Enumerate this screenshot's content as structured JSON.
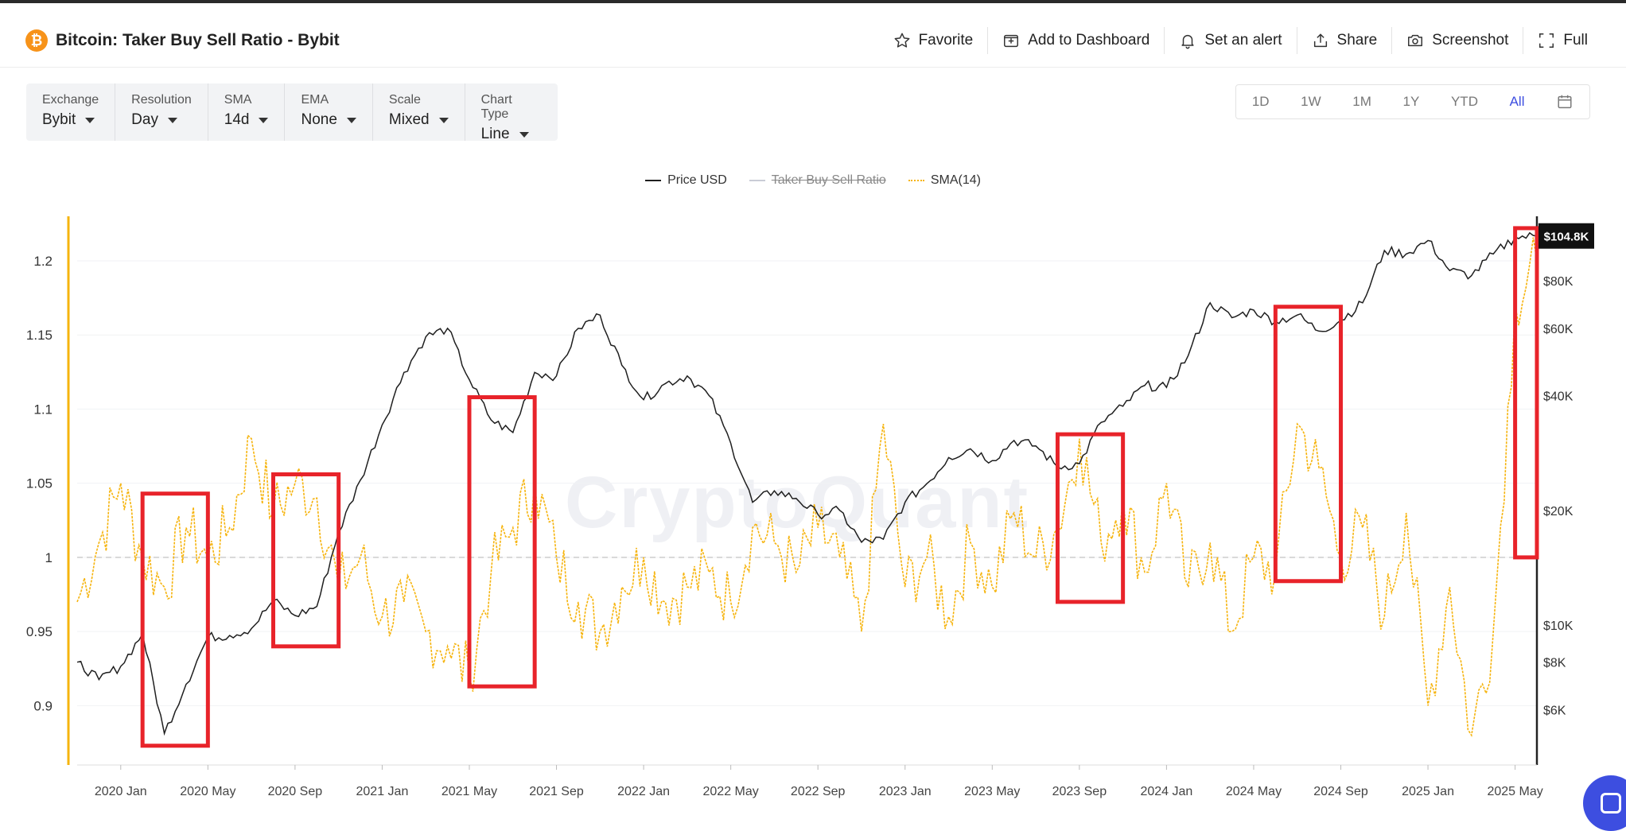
{
  "header": {
    "title": "Bitcoin: Taker Buy Sell Ratio - Bybit",
    "actions": [
      {
        "label": "Favorite",
        "icon": "star-icon"
      },
      {
        "label": "Add to Dashboard",
        "icon": "add-dashboard-icon"
      },
      {
        "label": "Set an alert",
        "icon": "bell-icon"
      },
      {
        "label": "Share",
        "icon": "share-icon"
      },
      {
        "label": "Screenshot",
        "icon": "camera-icon"
      },
      {
        "label": "Full",
        "icon": "fullscreen-icon"
      }
    ]
  },
  "controls": [
    {
      "label": "Exchange",
      "value": "Bybit"
    },
    {
      "label": "Resolution",
      "value": "Day"
    },
    {
      "label": "SMA",
      "value": "14d"
    },
    {
      "label": "EMA",
      "value": "None"
    },
    {
      "label": "Scale",
      "value": "Mixed"
    },
    {
      "label": "Chart Type",
      "value": "Line"
    }
  ],
  "ranges": [
    "1D",
    "1W",
    "1M",
    "1Y",
    "YTD",
    "All"
  ],
  "active_range": "All",
  "watermark": "CryptoQuant",
  "colors": {
    "price": "#1f1f1f",
    "sma": "#f6b40e",
    "ratio": "#c9ccd6",
    "highlight": "#e8232a",
    "accent": "#3d4ee0"
  },
  "chart_data": {
    "type": "line",
    "x_axis": {
      "tick_labels": [
        "2020 Jan",
        "2020 May",
        "2020 Sep",
        "2021 Jan",
        "2021 May",
        "2021 Sep",
        "2022 Jan",
        "2022 May",
        "2022 Sep",
        "2023 Jan",
        "2023 May",
        "2023 Sep",
        "2024 Jan",
        "2024 May",
        "2024 Sep",
        "2025 Jan",
        "2025 May"
      ],
      "range": [
        "2019-11",
        "2025-06"
      ]
    },
    "left_axis": {
      "ticks": [
        "0.9",
        "0.95",
        "1",
        "1.05",
        "1.1",
        "1.15",
        "1.2"
      ],
      "range": [
        0.86,
        1.23
      ],
      "reference_line": 1
    },
    "right_axis": {
      "scale": "log",
      "ticks": [
        "$6K",
        "$8K",
        "$10K",
        "$20K",
        "$40K",
        "$60K",
        "$80K"
      ],
      "range": [
        4300,
        118000
      ]
    },
    "legend": {
      "position": "top-center",
      "entries": [
        "Price USD",
        "Taker Buy Sell Ratio",
        "SMA(14)"
      ],
      "hidden": [
        "Taker Buy Sell Ratio"
      ]
    },
    "current_price_label": "$104.8K",
    "series": [
      {
        "name": "Price USD",
        "axis": "right",
        "color": "#1f1f1f",
        "points": [
          [
            "2019-11",
            8000
          ],
          [
            "2019-12",
            7200
          ],
          [
            "2020-01",
            7800
          ],
          [
            "2020-02",
            9500
          ],
          [
            "2020-03",
            5200
          ],
          [
            "2020-04",
            7000
          ],
          [
            "2020-05",
            9300
          ],
          [
            "2020-06",
            9400
          ],
          [
            "2020-07",
            9800
          ],
          [
            "2020-08",
            11600
          ],
          [
            "2020-09",
            10600
          ],
          [
            "2020-10",
            11200
          ],
          [
            "2020-11",
            17500
          ],
          [
            "2020-12",
            24000
          ],
          [
            "2021-01",
            33500
          ],
          [
            "2021-02",
            46000
          ],
          [
            "2021-03",
            57000
          ],
          [
            "2021-04",
            60000
          ],
          [
            "2021-05",
            44000
          ],
          [
            "2021-06",
            34500
          ],
          [
            "2021-07",
            32000
          ],
          [
            "2021-08",
            46000
          ],
          [
            "2021-09",
            45000
          ],
          [
            "2021-10",
            60000
          ],
          [
            "2021-11",
            65000
          ],
          [
            "2021-12",
            48000
          ],
          [
            "2022-01",
            39000
          ],
          [
            "2022-02",
            43000
          ],
          [
            "2022-03",
            45000
          ],
          [
            "2022-04",
            40000
          ],
          [
            "2022-05",
            30000
          ],
          [
            "2022-06",
            21000
          ],
          [
            "2022-07",
            22500
          ],
          [
            "2022-08",
            21500
          ],
          [
            "2022-09",
            19500
          ],
          [
            "2022-10",
            20000
          ],
          [
            "2022-11",
            16500
          ],
          [
            "2022-12",
            16800
          ],
          [
            "2023-01",
            21000
          ],
          [
            "2023-02",
            23500
          ],
          [
            "2023-03",
            27500
          ],
          [
            "2023-04",
            29000
          ],
          [
            "2023-05",
            27000
          ],
          [
            "2023-06",
            30500
          ],
          [
            "2023-07",
            29500
          ],
          [
            "2023-08",
            26000
          ],
          [
            "2023-09",
            26500
          ],
          [
            "2023-10",
            34000
          ],
          [
            "2023-11",
            37500
          ],
          [
            "2023-12",
            42500
          ],
          [
            "2024-01",
            42000
          ],
          [
            "2024-02",
            51000
          ],
          [
            "2024-03",
            70000
          ],
          [
            "2024-04",
            64000
          ],
          [
            "2024-05",
            67000
          ],
          [
            "2024-06",
            62500
          ],
          [
            "2024-07",
            65000
          ],
          [
            "2024-08",
            59000
          ],
          [
            "2024-09",
            63000
          ],
          [
            "2024-10",
            70000
          ],
          [
            "2024-11",
            96000
          ],
          [
            "2024-12",
            94000
          ],
          [
            "2025-01",
            102000
          ],
          [
            "2025-02",
            85000
          ],
          [
            "2025-03",
            82500
          ],
          [
            "2025-04",
            94000
          ],
          [
            "2025-05",
            104000
          ],
          [
            "2025-06",
            104800
          ]
        ]
      },
      {
        "name": "SMA(14)",
        "axis": "left",
        "color": "#f6b40e",
        "points": [
          [
            "2019-11",
            0.97
          ],
          [
            "2019-12",
            1.01
          ],
          [
            "2020-01",
            1.05
          ],
          [
            "2020-02",
            1.0
          ],
          [
            "2020-03",
            0.98
          ],
          [
            "2020-04",
            1.02
          ],
          [
            "2020-05",
            1.0
          ],
          [
            "2020-06",
            1.02
          ],
          [
            "2020-07",
            1.08
          ],
          [
            "2020-08",
            1.03
          ],
          [
            "2020-09",
            1.05
          ],
          [
            "2020-10",
            1.04
          ],
          [
            "2020-11",
            0.98
          ],
          [
            "2020-12",
            1.0
          ],
          [
            "2021-01",
            0.96
          ],
          [
            "2021-02",
            0.97
          ],
          [
            "2021-03",
            0.95
          ],
          [
            "2021-04",
            0.94
          ],
          [
            "2021-05",
            0.92
          ],
          [
            "2021-06",
            0.99
          ],
          [
            "2021-07",
            1.02
          ],
          [
            "2021-08",
            1.05
          ],
          [
            "2021-09",
            1.0
          ],
          [
            "2021-10",
            0.97
          ],
          [
            "2021-11",
            0.95
          ],
          [
            "2021-12",
            0.98
          ],
          [
            "2022-01",
            1.0
          ],
          [
            "2022-02",
            0.97
          ],
          [
            "2022-03",
            0.98
          ],
          [
            "2022-04",
            0.99
          ],
          [
            "2022-05",
            0.97
          ],
          [
            "2022-06",
            1.02
          ],
          [
            "2022-07",
            1.01
          ],
          [
            "2022-08",
            0.99
          ],
          [
            "2022-09",
            1.02
          ],
          [
            "2022-10",
            1.0
          ],
          [
            "2022-11",
            0.95
          ],
          [
            "2022-12",
            1.09
          ],
          [
            "2023-01",
            0.98
          ],
          [
            "2023-02",
            1.0
          ],
          [
            "2023-03",
            0.96
          ],
          [
            "2023-04",
            1.01
          ],
          [
            "2023-05",
            0.98
          ],
          [
            "2023-06",
            1.03
          ],
          [
            "2023-07",
            1.0
          ],
          [
            "2023-08",
            1.02
          ],
          [
            "2023-09",
            1.08
          ],
          [
            "2023-10",
            1.01
          ],
          [
            "2023-11",
            1.04
          ],
          [
            "2023-12",
            0.99
          ],
          [
            "2024-01",
            1.05
          ],
          [
            "2024-02",
            0.98
          ],
          [
            "2024-03",
            1.01
          ],
          [
            "2024-04",
            0.95
          ],
          [
            "2024-05",
            1.0
          ],
          [
            "2024-06",
            0.99
          ],
          [
            "2024-07",
            1.09
          ],
          [
            "2024-08",
            1.06
          ],
          [
            "2024-09",
            1.0
          ],
          [
            "2024-10",
            1.02
          ],
          [
            "2024-11",
            0.96
          ],
          [
            "2024-12",
            1.03
          ],
          [
            "2025-01",
            0.9
          ],
          [
            "2025-02",
            0.98
          ],
          [
            "2025-03",
            0.88
          ],
          [
            "2025-04",
            0.95
          ],
          [
            "2025-05",
            1.17
          ],
          [
            "2025-06",
            1.2
          ]
        ]
      }
    ],
    "annotations": {
      "highlight_boxes": [
        {
          "from": "2020-02",
          "to": "2020-05",
          "y_top": 1.043,
          "y_bottom": 0.873
        },
        {
          "from": "2020-08",
          "to": "2020-11",
          "y_top": 1.056,
          "y_bottom": 0.94
        },
        {
          "from": "2021-05",
          "to": "2021-08",
          "y_top": 1.108,
          "y_bottom": 0.913
        },
        {
          "from": "2023-08",
          "to": "2023-11",
          "y_top": 1.083,
          "y_bottom": 0.97
        },
        {
          "from": "2024-06",
          "to": "2024-09",
          "y_top": 1.169,
          "y_bottom": 0.984
        },
        {
          "from": "2025-05",
          "to": "2025-06",
          "y_top": 1.222,
          "y_bottom": 1.0
        }
      ]
    }
  }
}
